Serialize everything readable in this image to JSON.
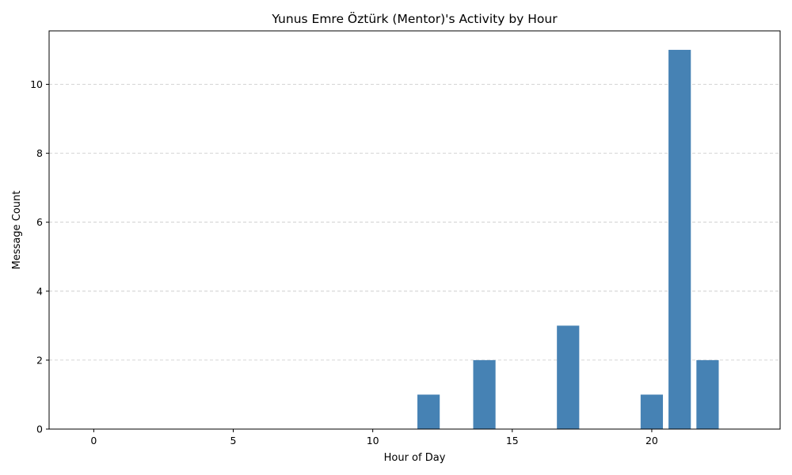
{
  "chart_data": {
    "type": "bar",
    "title": "Yunus Emre Öztürk (Mentor)'s Activity by Hour",
    "xlabel": "Hour of Day",
    "ylabel": "Message Count",
    "x": [
      12,
      14,
      17,
      20,
      21,
      22
    ],
    "values": [
      1,
      2,
      3,
      1,
      11,
      2
    ],
    "xlim": [
      -1.6,
      24.6
    ],
    "ylim": [
      0,
      11.55
    ],
    "xticks": [
      0,
      5,
      10,
      15,
      20
    ],
    "yticks": [
      0,
      2,
      4,
      6,
      8,
      10
    ],
    "bar_color": "#4682b4",
    "grid": {
      "axis": "y",
      "style": "dashed",
      "color": "#c8c8c8"
    }
  }
}
